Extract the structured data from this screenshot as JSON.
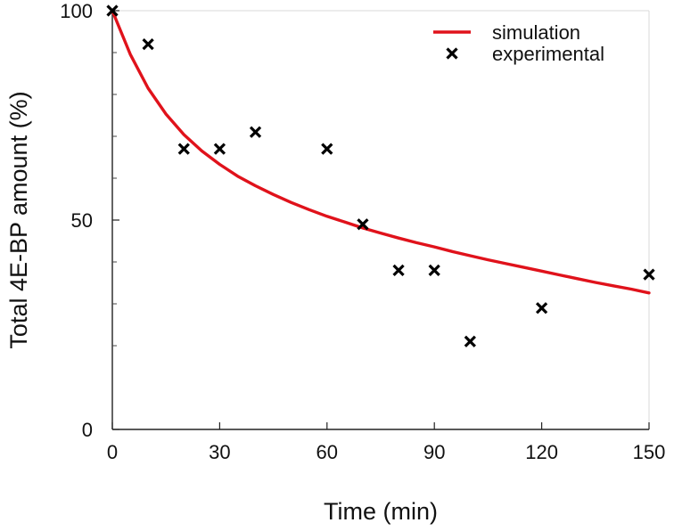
{
  "chart_data": {
    "type": "line",
    "title": "",
    "xlabel": "Time (min)",
    "ylabel": "Total 4E-BP amount (%)",
    "xlim": [
      0,
      150
    ],
    "ylim": [
      0,
      100
    ],
    "x_ticks": [
      0,
      30,
      60,
      90,
      120,
      150
    ],
    "y_ticks": [
      0,
      50,
      100
    ],
    "y_minor_ticks": [
      20,
      30,
      40,
      60,
      70,
      80,
      90
    ],
    "grid": false,
    "legend_position": "top-right",
    "series": [
      {
        "name": "simulation",
        "kind": "line",
        "color": "#e0121b",
        "x": [
          0,
          5,
          10,
          15,
          20,
          25,
          30,
          35,
          40,
          45,
          50,
          55,
          60,
          65,
          70,
          75,
          80,
          85,
          90,
          95,
          100,
          105,
          110,
          115,
          120,
          125,
          130,
          135,
          140,
          145,
          150
        ],
        "y": [
          100,
          89.6,
          81.5,
          75.3,
          70.4,
          66.5,
          63.3,
          60.5,
          58.2,
          56.1,
          54.2,
          52.5,
          50.9,
          49.5,
          48.1,
          46.9,
          45.7,
          44.6,
          43.6,
          42.5,
          41.5,
          40.5,
          39.6,
          38.7,
          37.8,
          36.9,
          36.0,
          35.1,
          34.3,
          33.5,
          32.6
        ]
      },
      {
        "name": "experimental",
        "kind": "scatter",
        "marker": "x",
        "color": "#000000",
        "x": [
          0,
          10,
          20,
          30,
          40,
          60,
          70,
          80,
          90,
          100,
          120,
          150
        ],
        "y": [
          100,
          92,
          67,
          67,
          71,
          67,
          49,
          38,
          38,
          21,
          29,
          37
        ]
      }
    ]
  }
}
